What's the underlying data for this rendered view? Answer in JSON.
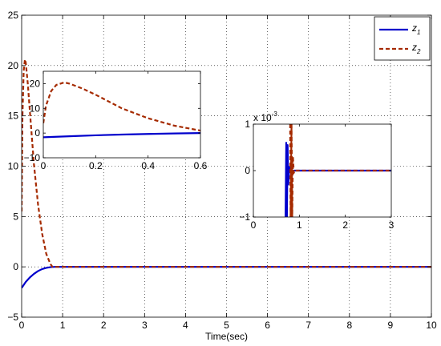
{
  "chart_data": [
    {
      "type": "line",
      "role": "main",
      "xlabel": "Time(sec)",
      "ylabel": "",
      "xlim": [
        0,
        10
      ],
      "ylim": [
        -5,
        25
      ],
      "xticks": [
        0,
        1,
        2,
        3,
        4,
        5,
        6,
        7,
        8,
        9,
        10
      ],
      "yticks": [
        -5,
        0,
        5,
        10,
        15,
        20,
        25
      ],
      "grid": "dotted",
      "legend": {
        "placement": "top-right",
        "entries": [
          {
            "base": "z",
            "sub": "1"
          },
          {
            "base": "z",
            "sub": "2"
          }
        ]
      },
      "series": [
        {
          "name": "z1",
          "color": "#0000cc",
          "style": "solid",
          "x": [
            0,
            0.05,
            0.1,
            0.2,
            0.3,
            0.4,
            0.5,
            0.6,
            0.7,
            0.8,
            1,
            2,
            3,
            4,
            5,
            6,
            7,
            8,
            9,
            10
          ],
          "y": [
            -2.1,
            -1.8,
            -1.5,
            -1.05,
            -0.7,
            -0.42,
            -0.22,
            -0.1,
            -0.03,
            0,
            0,
            0,
            0,
            0,
            0,
            0,
            0,
            0,
            0,
            0
          ]
        },
        {
          "name": "z2",
          "color": "#a52a00",
          "style": "dashed",
          "x": [
            0,
            0.02,
            0.05,
            0.08,
            0.1,
            0.15,
            0.2,
            0.3,
            0.4,
            0.5,
            0.6,
            0.7,
            0.75,
            0.8,
            1,
            2,
            3,
            4,
            5,
            6,
            7,
            8,
            9,
            10
          ],
          "y": [
            5.5,
            15,
            19.5,
            20.6,
            20.3,
            18.2,
            15.5,
            10.2,
            6.2,
            3.3,
            1.3,
            0.3,
            0,
            0,
            0,
            0,
            0,
            0,
            0,
            0,
            0,
            0,
            0,
            0
          ]
        }
      ]
    },
    {
      "type": "line",
      "role": "inset-left",
      "xlim": [
        0,
        0.6
      ],
      "ylim": [
        -10,
        25
      ],
      "xticks": [
        0,
        0.2,
        0.4,
        0.6
      ],
      "xticklabels": [
        "0",
        "0.2",
        "0.4",
        "0.6"
      ],
      "yticks": [
        -10,
        0,
        10,
        20
      ],
      "series": [
        {
          "name": "z1",
          "color": "#0000cc",
          "style": "solid",
          "x": [
            0,
            0.1,
            0.2,
            0.3,
            0.4,
            0.5,
            0.6
          ],
          "y": [
            -1.7,
            -1.3,
            -0.9,
            -0.6,
            -0.35,
            -0.15,
            0
          ]
        },
        {
          "name": "z2",
          "color": "#a52a00",
          "style": "dashed",
          "x": [
            0,
            0.01,
            0.03,
            0.05,
            0.08,
            0.1,
            0.15,
            0.2,
            0.3,
            0.4,
            0.5,
            0.6
          ],
          "y": [
            4,
            11,
            17,
            19.5,
            20.5,
            20,
            18,
            15.5,
            10,
            6,
            3,
            1
          ]
        }
      ]
    },
    {
      "type": "line",
      "role": "inset-right",
      "multiplier_base": "x 10",
      "multiplier_exp": "-3",
      "xlim": [
        0,
        3
      ],
      "ylim": [
        -1,
        1
      ],
      "xticks": [
        0,
        1,
        2,
        3
      ],
      "yticks": [
        -1,
        0,
        1
      ],
      "series": [
        {
          "name": "z1",
          "color": "#0000cc",
          "style": "solid",
          "x": [
            0.7,
            0.715,
            0.73,
            0.745,
            0.76,
            0.78,
            0.8,
            3
          ],
          "y": [
            -1,
            0.6,
            -1,
            0.55,
            -0.3,
            0.08,
            0,
            0
          ]
        },
        {
          "name": "z2",
          "color": "#a52a00",
          "style": "dashed",
          "x": [
            0.8,
            0.81,
            0.83,
            0.845,
            0.86,
            0.88,
            0.9,
            3
          ],
          "y": [
            1,
            -1,
            1,
            -1,
            0.3,
            -0.05,
            0,
            0
          ]
        }
      ]
    }
  ]
}
